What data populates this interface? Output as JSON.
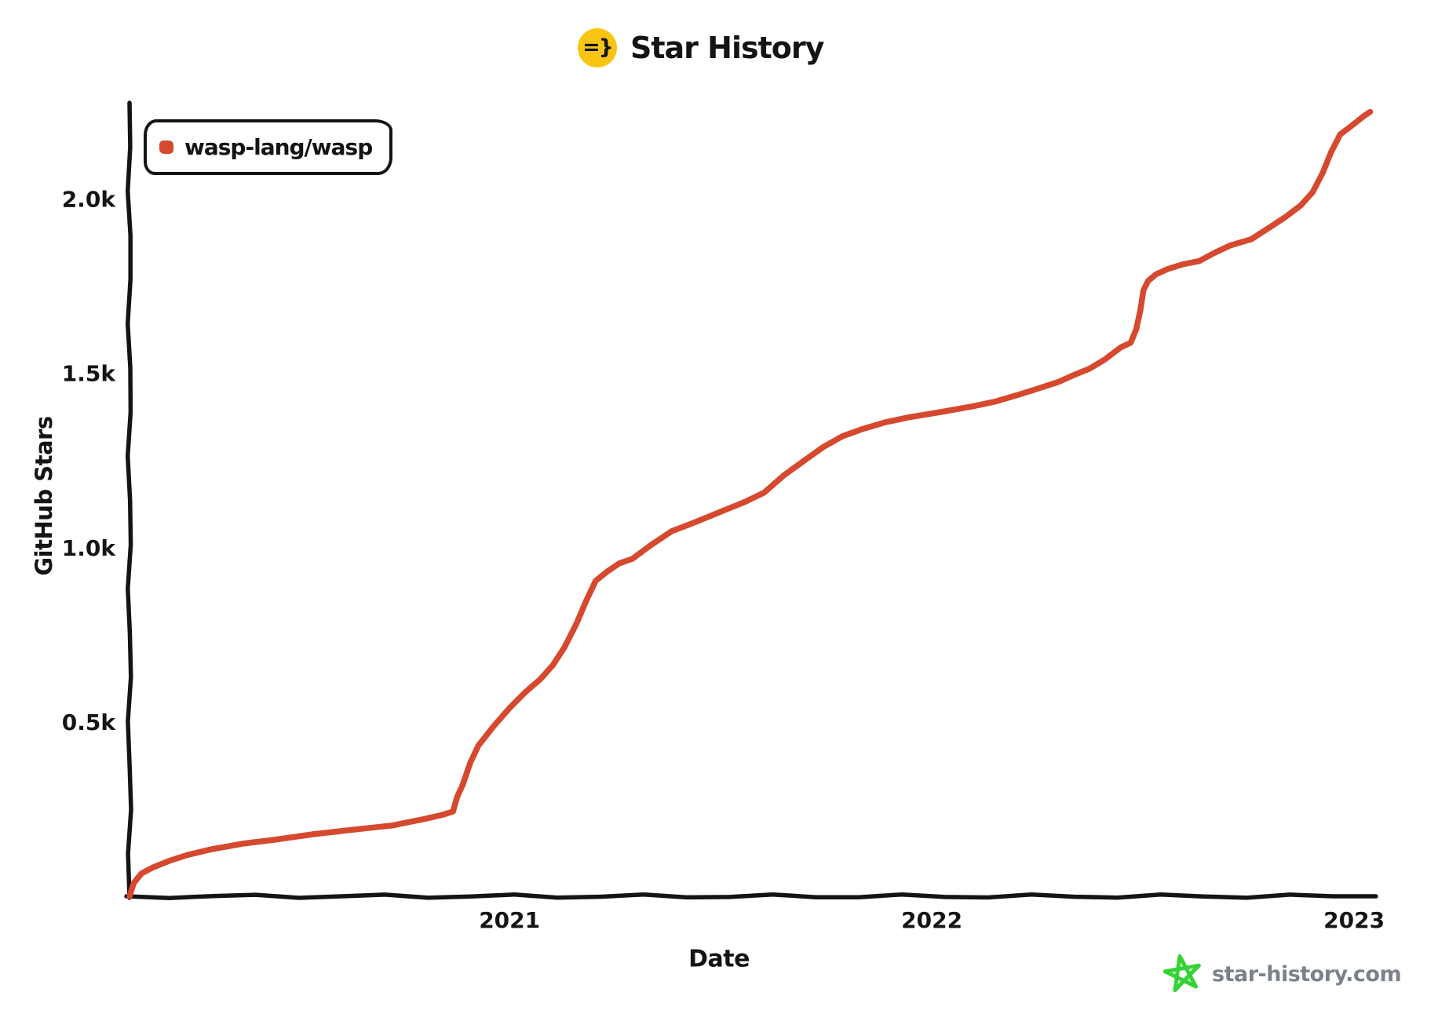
{
  "header": {
    "icon_glyph": "=}",
    "title": "Star History"
  },
  "legend": {
    "items": [
      {
        "label": "wasp-lang/wasp",
        "color": "#d6492f"
      }
    ]
  },
  "footer": {
    "site": "star-history.com"
  },
  "colors": {
    "line": "#d6492f",
    "axis": "#141414",
    "icon_bg": "#f9c512",
    "footer_text": "#7b828c",
    "footer_star": "#35d435"
  },
  "chart_data": {
    "type": "line",
    "title": "Star History",
    "xlabel": "Date",
    "ylabel": "GitHub Stars",
    "xlim": [
      2020.1,
      2023.05
    ],
    "ylim": [
      0,
      2267
    ],
    "grid": false,
    "legend_position": "top-left",
    "x_ticks": [
      {
        "value": 2021,
        "label": "2021"
      },
      {
        "value": 2022,
        "label": "2022"
      },
      {
        "value": 2023,
        "label": "2023"
      }
    ],
    "y_ticks": [
      {
        "value": 500,
        "label": "0.5k"
      },
      {
        "value": 1000,
        "label": "1.0k"
      },
      {
        "value": 1500,
        "label": "1.5k"
      },
      {
        "value": 2000,
        "label": "2.0k"
      }
    ],
    "series": [
      {
        "name": "wasp-lang/wasp",
        "color": "#d6492f",
        "points": [
          [
            2020.1,
            0
          ],
          [
            2020.11,
            38
          ],
          [
            2020.128,
            65
          ],
          [
            2020.156,
            83
          ],
          [
            2020.193,
            101
          ],
          [
            2020.239,
            119
          ],
          [
            2020.295,
            135
          ],
          [
            2020.369,
            151
          ],
          [
            2020.443,
            162
          ],
          [
            2020.536,
            178
          ],
          [
            2020.629,
            191
          ],
          [
            2020.722,
            203
          ],
          [
            2020.796,
            221
          ],
          [
            2020.842,
            234
          ],
          [
            2020.866,
            243
          ],
          [
            2020.876,
            286
          ],
          [
            2020.889,
            320
          ],
          [
            2020.907,
            383
          ],
          [
            2020.926,
            432
          ],
          [
            2020.963,
            489
          ],
          [
            2021.0,
            540
          ],
          [
            2021.037,
            585
          ],
          [
            2021.074,
            624
          ],
          [
            2021.102,
            662
          ],
          [
            2021.13,
            714
          ],
          [
            2021.158,
            781
          ],
          [
            2021.182,
            849
          ],
          [
            2021.204,
            905
          ],
          [
            2021.232,
            932
          ],
          [
            2021.26,
            955
          ],
          [
            2021.291,
            968
          ],
          [
            2021.334,
            1007
          ],
          [
            2021.384,
            1047
          ],
          [
            2021.427,
            1067
          ],
          [
            2021.464,
            1085
          ],
          [
            2021.51,
            1108
          ],
          [
            2021.557,
            1131
          ],
          [
            2021.603,
            1158
          ],
          [
            2021.649,
            1207
          ],
          [
            2021.696,
            1248
          ],
          [
            2021.742,
            1288
          ],
          [
            2021.789,
            1320
          ],
          [
            2021.835,
            1340
          ],
          [
            2021.891,
            1360
          ],
          [
            2021.946,
            1374
          ],
          [
            2022.021,
            1389
          ],
          [
            2022.095,
            1405
          ],
          [
            2022.15,
            1419
          ],
          [
            2022.206,
            1439
          ],
          [
            2022.243,
            1453
          ],
          [
            2022.299,
            1475
          ],
          [
            2022.336,
            1495
          ],
          [
            2022.373,
            1513
          ],
          [
            2022.41,
            1540
          ],
          [
            2022.447,
            1574
          ],
          [
            2022.471,
            1588
          ],
          [
            2022.484,
            1626
          ],
          [
            2022.494,
            1682
          ],
          [
            2022.501,
            1738
          ],
          [
            2022.512,
            1765
          ],
          [
            2022.531,
            1784
          ],
          [
            2022.558,
            1799
          ],
          [
            2022.595,
            1813
          ],
          [
            2022.633,
            1822
          ],
          [
            2022.67,
            1846
          ],
          [
            2022.707,
            1867
          ],
          [
            2022.757,
            1885
          ],
          [
            2022.794,
            1914
          ],
          [
            2022.837,
            1948
          ],
          [
            2022.874,
            1982
          ],
          [
            2022.902,
            2020
          ],
          [
            2022.926,
            2076
          ],
          [
            2022.945,
            2133
          ],
          [
            2022.967,
            2185
          ],
          [
            2022.995,
            2211
          ],
          [
            2023.023,
            2238
          ],
          [
            2023.038,
            2250
          ]
        ]
      }
    ]
  }
}
